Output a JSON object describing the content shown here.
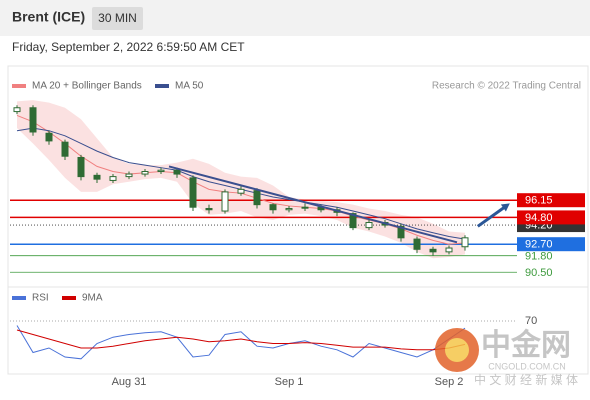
{
  "header": {
    "title": "Brent (ICE)",
    "interval": "30 MIN",
    "timestamp": "Friday, September 2, 2022 6:59:50 AM CET"
  },
  "legend": {
    "bollinger": "MA 20 + Bollinger Bands",
    "ma50": "MA 50",
    "credit": "Research © 2022 Trading Central"
  },
  "watermark": {
    "name": "中金网",
    "domain": "CNGOLD.COM.CN",
    "tagline": "中 文 财 经 新 媒 体"
  },
  "chart_data": {
    "type": "candlestick",
    "categories": [
      null,
      null,
      null,
      null,
      null,
      null,
      null,
      "Aug 31",
      null,
      null,
      null,
      null,
      null,
      null,
      null,
      null,
      null,
      "Sep 1",
      null,
      null,
      null,
      null,
      null,
      null,
      null,
      null,
      null,
      "Sep 2",
      null
    ],
    "color": "#2f6b34",
    "open": [
      103.1,
      103.4,
      101.4,
      100.7,
      99.5,
      98.1,
      97.7,
      98.0,
      98.2,
      98.4,
      98.5,
      97.9,
      95.5,
      95.3,
      96.7,
      96.9,
      95.8,
      95.4,
      95.6,
      95.6,
      95.4,
      95.1,
      94.0,
      94.4,
      94.1,
      93.1,
      92.3,
      92.1,
      92.5
    ],
    "high": [
      103.6,
      103.6,
      101.6,
      100.9,
      99.7,
      98.3,
      98.2,
      98.4,
      98.6,
      98.7,
      98.7,
      98.1,
      95.8,
      97.0,
      97.3,
      97.1,
      95.9,
      95.7,
      95.9,
      95.8,
      95.6,
      95.2,
      94.6,
      94.6,
      94.3,
      93.3,
      92.5,
      92.6,
      93.4
    ],
    "low": [
      102.9,
      101.2,
      100.5,
      99.3,
      97.7,
      97.5,
      97.5,
      97.8,
      98.0,
      98.2,
      97.9,
      95.3,
      95.1,
      95.1,
      96.5,
      95.5,
      95.1,
      95.2,
      95.3,
      95.2,
      94.9,
      93.8,
      93.8,
      94.0,
      92.9,
      92.0,
      91.8,
      91.9,
      92.2
    ],
    "close": [
      103.4,
      101.5,
      100.8,
      99.6,
      98.0,
      97.8,
      98.0,
      98.2,
      98.4,
      98.5,
      98.2,
      95.6,
      95.4,
      96.8,
      97.0,
      95.8,
      95.4,
      95.5,
      95.6,
      95.4,
      95.2,
      94.0,
      94.4,
      94.2,
      93.2,
      92.3,
      92.1,
      92.4,
      93.2
    ],
    "ma20": {
      "color": "#f08080",
      "values": [
        102.8,
        102.3,
        101.5,
        100.6,
        99.6,
        98.8,
        98.4,
        98.2,
        98.3,
        98.4,
        98.3,
        97.6,
        97.0,
        96.8,
        96.7,
        96.3,
        95.9,
        95.7,
        95.6,
        95.5,
        95.3,
        94.9,
        94.6,
        94.3,
        93.9,
        93.4,
        93.0,
        92.7,
        92.8
      ]
    },
    "ma50": {
      "color": "#3a4f8f",
      "values": [
        101.6,
        101.8,
        101.6,
        101.2,
        100.6,
        100.0,
        99.5,
        99.1,
        98.9,
        98.7,
        98.5,
        98.0,
        97.6,
        97.3,
        97.0,
        96.7,
        96.4,
        96.2,
        96.0,
        95.8,
        95.6,
        95.3,
        95.0,
        94.7,
        94.3,
        93.9,
        93.6,
        93.3,
        93.1
      ]
    },
    "bollinger": {
      "color": "#fadada",
      "upper": [
        103.9,
        104.0,
        103.8,
        103.4,
        102.5,
        101.0,
        99.5,
        99.0,
        98.9,
        98.9,
        99.1,
        99.4,
        99.0,
        98.3,
        98.0,
        97.9,
        97.3,
        96.4,
        96.2,
        96.1,
        96.0,
        95.8,
        95.5,
        95.3,
        95.0,
        94.8,
        94.3,
        93.7,
        93.6
      ],
      "lower": [
        101.8,
        100.6,
        99.3,
        97.9,
        96.8,
        96.8,
        97.4,
        97.6,
        97.8,
        97.9,
        97.6,
        95.9,
        95.0,
        95.1,
        95.3,
        94.8,
        94.6,
        95.0,
        95.1,
        94.9,
        94.6,
        94.0,
        93.7,
        93.3,
        92.8,
        92.1,
        91.6,
        91.7,
        91.9
      ]
    },
    "trendline": {
      "color": "#3a4f8f",
      "x": [
        9.5,
        27.5
      ],
      "values": [
        98.8,
        92.85
      ]
    },
    "arrow": {
      "color": "#2b5797",
      "x": [
        28.8,
        30.8
      ],
      "values": [
        94.1,
        95.9
      ]
    },
    "levels": [
      {
        "value": 94.2,
        "label": "94.20",
        "color": "#333333",
        "style": "box"
      },
      {
        "value": 96.15,
        "color": "#e00000",
        "style": "box"
      },
      {
        "value": 94.8,
        "label": "94.80",
        "color": "#e00000",
        "style": "box"
      },
      {
        "value": 92.7,
        "label": "92.70",
        "color": "#1f6fe0",
        "style": "box"
      },
      {
        "value": 91.8,
        "label": "91.80",
        "color": "#3d9a3d",
        "style": "text"
      },
      {
        "value": 90.5,
        "label": "90.50",
        "color": "#3d9a3d",
        "style": "text"
      }
    ],
    "ylim": [
      89.5,
      104.4
    ],
    "rsi": {
      "ylim": [
        15,
        90
      ],
      "yticks": [
        70
      ],
      "series": [
        {
          "name": "RSI",
          "color": "#4a72d8",
          "values": [
            65,
            35,
            40,
            30,
            28,
            45,
            52,
            55,
            57,
            58,
            52,
            30,
            32,
            55,
            58,
            42,
            40,
            45,
            48,
            42,
            38,
            30,
            45,
            40,
            35,
            30,
            38,
            50,
            62
          ]
        },
        {
          "name": "9MA",
          "color": "#d00000",
          "values": [
            60,
            55,
            50,
            45,
            40,
            40,
            42,
            45,
            48,
            50,
            52,
            50,
            47,
            48,
            50,
            47,
            45,
            45,
            46,
            45,
            43,
            41,
            41,
            41,
            39,
            38,
            38,
            40,
            44
          ]
        }
      ]
    }
  }
}
